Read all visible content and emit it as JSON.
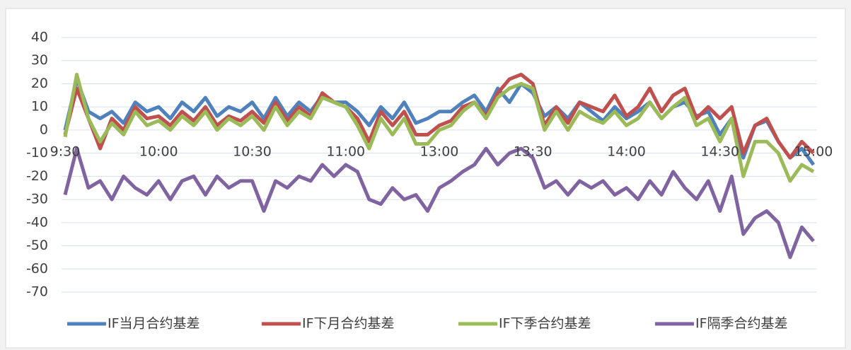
{
  "chart_data": {
    "type": "line",
    "categories": [
      "9:30",
      null,
      null,
      null,
      null,
      null,
      null,
      null,
      "10:00",
      null,
      null,
      null,
      null,
      null,
      null,
      null,
      "10:30",
      null,
      null,
      null,
      null,
      null,
      null,
      null,
      "11:00",
      null,
      null,
      null,
      null,
      null,
      null,
      null,
      "13:00",
      null,
      null,
      null,
      null,
      null,
      null,
      null,
      "13:30",
      null,
      null,
      null,
      null,
      null,
      null,
      null,
      "14:00",
      null,
      null,
      null,
      null,
      null,
      null,
      null,
      "14:30",
      null,
      null,
      null,
      null,
      null,
      null,
      null,
      "15:00"
    ],
    "series": [
      {
        "name": "IF当月合约基差",
        "color": "#4f81bd",
        "values": [
          0,
          22,
          8,
          5,
          8,
          3,
          12,
          8,
          10,
          5,
          12,
          8,
          14,
          6,
          10,
          8,
          12,
          5,
          14,
          6,
          12,
          8,
          15,
          12,
          12,
          8,
          2,
          10,
          5,
          12,
          3,
          5,
          8,
          8,
          12,
          15,
          8,
          18,
          12,
          20,
          16,
          6,
          10,
          5,
          12,
          8,
          4,
          10,
          5,
          8,
          12,
          5,
          10,
          12,
          6,
          8,
          -2,
          5,
          -12,
          2,
          4,
          -5,
          -12,
          -8,
          -15
        ]
      },
      {
        "name": "IF下月合约基差",
        "color": "#c0504d",
        "values": [
          -2,
          18,
          5,
          -8,
          5,
          0,
          10,
          5,
          6,
          2,
          8,
          4,
          10,
          2,
          6,
          4,
          8,
          3,
          12,
          4,
          10,
          6,
          16,
          12,
          10,
          5,
          -5,
          8,
          2,
          8,
          -2,
          -2,
          2,
          4,
          10,
          12,
          6,
          16,
          22,
          24,
          20,
          2,
          10,
          3,
          12,
          10,
          8,
          15,
          6,
          10,
          18,
          8,
          15,
          18,
          5,
          10,
          5,
          10,
          -10,
          2,
          5,
          -5,
          -12,
          -5,
          -10
        ]
      },
      {
        "name": "IF下季合约基差",
        "color": "#9bbb59",
        "values": [
          -3,
          24,
          5,
          -5,
          3,
          -2,
          8,
          2,
          4,
          0,
          6,
          2,
          8,
          0,
          5,
          2,
          6,
          0,
          10,
          2,
          8,
          5,
          14,
          12,
          10,
          2,
          -8,
          5,
          -2,
          5,
          -6,
          -6,
          0,
          2,
          8,
          12,
          5,
          14,
          18,
          20,
          18,
          0,
          8,
          0,
          8,
          5,
          3,
          8,
          2,
          5,
          12,
          5,
          10,
          14,
          2,
          5,
          -5,
          5,
          -20,
          -5,
          -5,
          -10,
          -22,
          -15,
          -18
        ]
      },
      {
        "name": "IF隔季合约基差",
        "color": "#8064a2",
        "values": [
          -28,
          -8,
          -25,
          -22,
          -30,
          -20,
          -25,
          -28,
          -22,
          -30,
          -22,
          -20,
          -28,
          -20,
          -25,
          -22,
          -22,
          -35,
          -22,
          -25,
          -20,
          -22,
          -15,
          -20,
          -15,
          -18,
          -30,
          -32,
          -25,
          -30,
          -28,
          -35,
          -25,
          -22,
          -18,
          -15,
          -8,
          -15,
          -10,
          -8,
          -12,
          -25,
          -22,
          -28,
          -22,
          -25,
          -22,
          -28,
          -25,
          -30,
          -22,
          -28,
          -18,
          -25,
          -30,
          -22,
          -35,
          -20,
          -45,
          -38,
          -35,
          -40,
          -55,
          -42,
          -48
        ]
      }
    ],
    "ylim": [
      -70,
      40
    ],
    "yticks": [
      -70,
      -60,
      -50,
      -40,
      -30,
      -20,
      -10,
      0,
      10,
      20,
      30,
      40
    ],
    "grid": true
  }
}
